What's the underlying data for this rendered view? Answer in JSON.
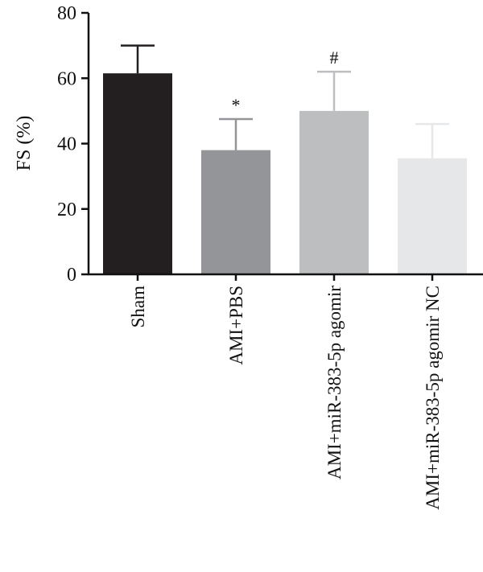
{
  "chart_data": {
    "type": "bar",
    "categories": [
      "Sham",
      "AMI+PBS",
      "AMI+miR-383-5p agomir",
      "AMI+miR-383-5p agomir NC"
    ],
    "values": [
      61.5,
      38,
      50,
      35.5
    ],
    "errors": [
      8.5,
      9.5,
      12,
      10.5
    ],
    "annotations": [
      "",
      "*",
      "#",
      ""
    ],
    "colors": [
      "#231f20",
      "#939598",
      "#bcbec0",
      "#e6e7e8"
    ],
    "errorbar_colors": [
      "#231f20",
      "#939598",
      "#bcbec0",
      "#e6e7e8"
    ],
    "title": "",
    "xlabel": "",
    "ylabel": "FS (%)",
    "ylim": [
      0,
      80
    ],
    "yticks": [
      0,
      20,
      40,
      60,
      80
    ],
    "grid": false
  }
}
